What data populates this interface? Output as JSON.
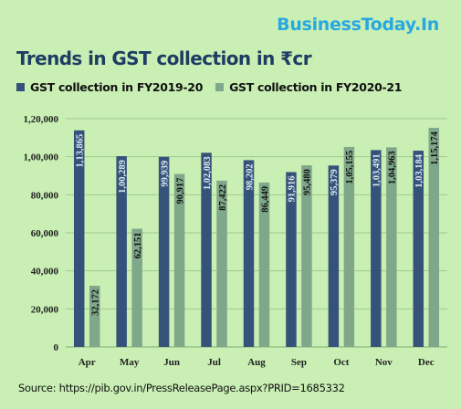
{
  "brand": {
    "name": "BusinessToday.In"
  },
  "header": {
    "title": "Trends in GST collection in ₹cr"
  },
  "colors": {
    "background": "#c9efb4",
    "brand": "#29a8e0",
    "title": "#1d3d63"
  },
  "chart_data": {
    "type": "bar",
    "title": "Trends in GST collection in ₹cr",
    "categories": [
      "Apr",
      "May",
      "Jun",
      "Jul",
      "Aug",
      "Sep",
      "Oct",
      "Nov",
      "Dec"
    ],
    "series": [
      {
        "name": "GST collection in FY2019-20",
        "color": "#35537a",
        "values": [
          113865,
          100289,
          99939,
          102083,
          98202,
          91916,
          95379,
          103491,
          103184
        ],
        "labels": [
          "1,13,865",
          "1,00,289",
          "99,939",
          "1,02,083",
          "98,202",
          "91,916",
          "95,379",
          "1,03,491",
          "1,03,184"
        ]
      },
      {
        "name": "GST collection in FY2020-21",
        "color": "#7fa88a",
        "values": [
          32172,
          62151,
          90917,
          87422,
          86449,
          95480,
          105155,
          104963,
          115174
        ],
        "labels": [
          "32,172",
          "62,151",
          "90,917",
          "87,422",
          "86,449",
          "95,480",
          "1,05,155",
          "1,04,963",
          "1,15,174"
        ]
      }
    ],
    "ylim": [
      0,
      120000
    ],
    "yticks": [
      0,
      20000,
      40000,
      60000,
      80000,
      100000,
      120000
    ],
    "ytick_labels": [
      "0",
      "20,000",
      "40,000",
      "60,000",
      "80,000",
      "1,00,000",
      "1,20,000"
    ],
    "grid": true,
    "legend": "top-left",
    "xlabel": "",
    "ylabel": ""
  },
  "footer": {
    "source": "Source: https://pib.gov.in/PressReleasePage.aspx?PRID=1685332"
  }
}
